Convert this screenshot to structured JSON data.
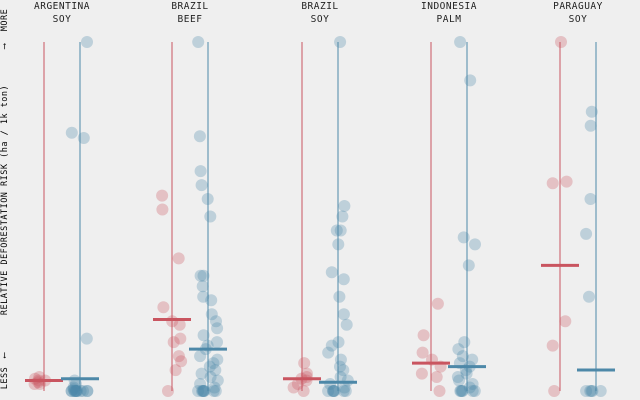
{
  "colors": {
    "red": "#c95560",
    "blue": "#4d88a8",
    "background": "#efefef"
  },
  "chart_data": {
    "type": "scatter",
    "ylabel": "RELATIVE DEFORESTATION RISK (ha / 1k ton)",
    "y_top_label": "MORE",
    "y_bottom_label": "LESS",
    "y_top_arrow": "⟶",
    "y_bottom_arrow": "⟵",
    "grid": false,
    "panels": [
      {
        "line1": "ARGENTINA",
        "line2": "SOY",
        "red": {
          "median": 0.03,
          "points": [
            0.04,
            0.03,
            0.02,
            0.035,
            0.025,
            0.02,
            0.03
          ]
        },
        "blue": {
          "median": 0.035,
          "points": [
            1.0,
            0.74,
            0.725,
            0.15,
            0.03,
            0.02,
            0.01,
            0.005,
            0.0,
            0.0,
            0.0,
            0.0,
            0.0,
            0.0,
            0.0,
            0.0,
            0.0,
            0.0,
            0.0,
            0.0
          ]
        }
      },
      {
        "line1": "BRAZIL",
        "line2": "BEEF",
        "red": {
          "median": 0.205,
          "points": [
            0.52,
            0.56,
            0.38,
            0.24,
            0.2,
            0.19,
            0.15,
            0.14,
            0.1,
            0.085,
            0.06,
            0.0
          ]
        },
        "blue": {
          "median": 0.12,
          "points": [
            1.0,
            0.73,
            0.63,
            0.59,
            0.55,
            0.5,
            0.33,
            0.33,
            0.3,
            0.27,
            0.26,
            0.22,
            0.2,
            0.18,
            0.16,
            0.14,
            0.13,
            0.12,
            0.1,
            0.09,
            0.08,
            0.07,
            0.06,
            0.05,
            0.04,
            0.03,
            0.02,
            0.01,
            0.0,
            0.0,
            0.0,
            0.0,
            0.0,
            0.0,
            0.0,
            0.0
          ]
        }
      },
      {
        "line1": "BRAZIL",
        "line2": "SOY",
        "red": {
          "median": 0.035,
          "points": [
            0.08,
            0.05,
            0.04,
            0.035,
            0.03,
            0.02,
            0.01,
            0.0
          ]
        },
        "blue": {
          "median": 0.025,
          "points": [
            1.0,
            0.53,
            0.5,
            0.46,
            0.46,
            0.42,
            0.34,
            0.32,
            0.27,
            0.22,
            0.19,
            0.14,
            0.13,
            0.11,
            0.09,
            0.07,
            0.06,
            0.04,
            0.03,
            0.02,
            0.01,
            0.0,
            0.0,
            0.0,
            0.0,
            0.0,
            0.0,
            0.0
          ]
        }
      },
      {
        "line1": "INDONESIA",
        "line2": "PALM",
        "red": {
          "median": 0.08,
          "points": [
            0.25,
            0.16,
            0.11,
            0.09,
            0.07,
            0.05,
            0.04,
            0.0
          ]
        },
        "blue": {
          "median": 0.07,
          "points": [
            1.0,
            0.89,
            0.44,
            0.42,
            0.36,
            0.14,
            0.12,
            0.1,
            0.09,
            0.08,
            0.07,
            0.06,
            0.05,
            0.04,
            0.03,
            0.02,
            0.01,
            0.0,
            0.0,
            0.0,
            0.0,
            0.0,
            0.0
          ]
        }
      },
      {
        "line1": "PARAGUAY",
        "line2": "SOY",
        "red": {
          "median": 0.36,
          "points": [
            1.0,
            0.6,
            0.595,
            0.2,
            0.13,
            0.0
          ]
        },
        "blue": {
          "median": 0.06,
          "points": [
            0.8,
            0.76,
            0.55,
            0.45,
            0.27,
            0.0,
            0.0,
            0.0,
            0.0,
            0.0
          ]
        }
      }
    ]
  }
}
